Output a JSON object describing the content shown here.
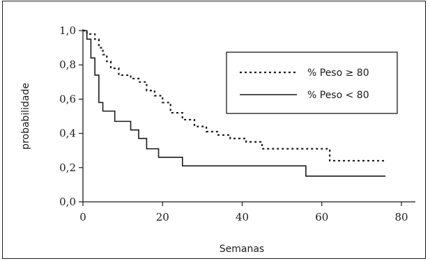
{
  "chart_data": {
    "type": "line",
    "step": true,
    "xlabel": "Semanas",
    "ylabel": "probabilidade",
    "xlim": [
      0,
      80
    ],
    "ylim": [
      0.0,
      1.0
    ],
    "x_ticks": [
      0,
      20,
      40,
      60,
      80
    ],
    "x_tick_labels": [
      "0",
      "20",
      "40",
      "60",
      "80"
    ],
    "y_ticks": [
      0.0,
      0.2,
      0.4,
      0.6,
      0.8,
      1.0
    ],
    "y_tick_labels": [
      "0,0",
      "0,2",
      "0,4",
      "0,6",
      "0,8",
      "1,0"
    ],
    "grid": false,
    "legend_position": "top-right",
    "series": [
      {
        "name": "% Peso ≥ 80",
        "style": "dotted",
        "points": [
          [
            0,
            1.0
          ],
          [
            1,
            0.98
          ],
          [
            3,
            0.95
          ],
          [
            4,
            0.9
          ],
          [
            5,
            0.86
          ],
          [
            6,
            0.82
          ],
          [
            7,
            0.78
          ],
          [
            9,
            0.74
          ],
          [
            12,
            0.72
          ],
          [
            14,
            0.7
          ],
          [
            16,
            0.65
          ],
          [
            18,
            0.62
          ],
          [
            20,
            0.58
          ],
          [
            22,
            0.52
          ],
          [
            25,
            0.48
          ],
          [
            28,
            0.44
          ],
          [
            31,
            0.41
          ],
          [
            34,
            0.39
          ],
          [
            37,
            0.37
          ],
          [
            41,
            0.35
          ],
          [
            45,
            0.31
          ],
          [
            56,
            0.31
          ],
          [
            61,
            0.31
          ],
          [
            62,
            0.24
          ],
          [
            76,
            0.24
          ]
        ]
      },
      {
        "name": "% Peso < 80",
        "style": "solid",
        "points": [
          [
            0,
            1.0
          ],
          [
            1,
            0.95
          ],
          [
            2,
            0.84
          ],
          [
            3,
            0.74
          ],
          [
            4,
            0.58
          ],
          [
            5,
            0.53
          ],
          [
            8,
            0.47
          ],
          [
            12,
            0.42
          ],
          [
            14,
            0.37
          ],
          [
            16,
            0.31
          ],
          [
            19,
            0.26
          ],
          [
            25,
            0.21
          ],
          [
            56,
            0.21
          ],
          [
            56,
            0.15
          ],
          [
            76,
            0.15
          ]
        ]
      }
    ]
  }
}
